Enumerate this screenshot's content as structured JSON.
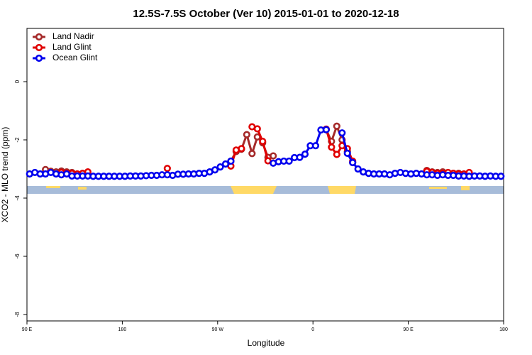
{
  "chart_data": {
    "type": "line",
    "title": "12.5S-7.5S October (Ver 10)   2015-01-01 to 2020-12-18",
    "xlabel": "Longitude",
    "ylabel": "XCO2 - MLO trend (ppm)",
    "xlim": [
      90,
      540
    ],
    "ylim": [
      -8.22,
      1.83
    ],
    "xticks": [
      {
        "value": 90,
        "label": "90 E"
      },
      180,
      {
        "value": 270,
        "label": "90 W"
      },
      {
        "value": 360,
        "label": "0"
      },
      {
        "value": 450,
        "label": "90 E"
      },
      {
        "value": 540,
        "label": "180"
      }
    ],
    "yticks": [
      0,
      -2,
      -4,
      -6,
      -8
    ],
    "legend": "top-left",
    "x": [
      92.5,
      97.5,
      102.5,
      107.5,
      112.5,
      117.5,
      122.5,
      127.5,
      132.5,
      137.5,
      142.5,
      147.5,
      152.5,
      157.5,
      162.5,
      167.5,
      172.5,
      177.5,
      182.5,
      187.5,
      192.5,
      197.5,
      202.5,
      207.5,
      212.5,
      217.5,
      222.5,
      227.5,
      232.5,
      237.5,
      242.5,
      247.5,
      252.5,
      257.5,
      262.5,
      267.5,
      272.5,
      277.5,
      282.5,
      287.5,
      292.5,
      297.5,
      302.5,
      307.5,
      312.5,
      317.5,
      322.5,
      327.5,
      332.5,
      337.5,
      342.5,
      347.5,
      352.5,
      357.5,
      362.5,
      367.5,
      372.5,
      377.5,
      382.5,
      387.5,
      392.5,
      397.5,
      402.5,
      407.5,
      412.5,
      417.5,
      422.5,
      427.5,
      432.5,
      437.5,
      442.5,
      447.5,
      452.5,
      457.5,
      462.5,
      467.5,
      472.5,
      477.5,
      482.5,
      487.5,
      492.5,
      497.5,
      502.5,
      507.5,
      512.5,
      517.5,
      522.5,
      527.5,
      532.5,
      537.5
    ],
    "series": [
      {
        "name": "Land Nadir",
        "color": "#a52a2a",
        "values": [
          null,
          null,
          null,
          -3.02,
          -3.08,
          -3.1,
          -3.07,
          -3.1,
          -3.12,
          null,
          null,
          null,
          null,
          null,
          null,
          null,
          null,
          null,
          null,
          null,
          null,
          null,
          null,
          null,
          null,
          null,
          null,
          null,
          null,
          null,
          null,
          null,
          null,
          null,
          null,
          null,
          null,
          null,
          -2.73,
          -2.4,
          -2.32,
          -1.82,
          -2.47,
          -1.9,
          -2.1,
          -2.6,
          -2.55,
          null,
          null,
          null,
          null,
          null,
          null,
          null,
          null,
          null,
          -1.65,
          -2.05,
          -1.53,
          -2.0,
          -2.4,
          -2.78,
          null,
          null,
          null,
          null,
          null,
          null,
          null,
          null,
          null,
          null,
          null,
          null,
          null,
          -3.05,
          -3.1,
          -3.12,
          -3.1,
          -3.15,
          -3.15,
          -3.15,
          -3.18,
          null,
          null,
          null,
          null,
          null,
          null,
          null
        ]
      },
      {
        "name": "Land Glint",
        "color": "#e00000",
        "values": [
          null,
          null,
          null,
          null,
          null,
          null,
          -3.12,
          -3.14,
          -3.15,
          -3.17,
          -3.15,
          -3.1,
          null,
          null,
          null,
          null,
          null,
          null,
          null,
          null,
          null,
          null,
          null,
          null,
          null,
          null,
          -2.98,
          null,
          null,
          null,
          null,
          null,
          null,
          null,
          null,
          null,
          null,
          null,
          -2.9,
          -2.35,
          -2.3,
          null,
          -1.55,
          -1.62,
          -2.05,
          -2.72,
          null,
          null,
          null,
          null,
          null,
          null,
          null,
          null,
          null,
          null,
          -1.63,
          -2.25,
          -2.5,
          -2.2,
          -2.3,
          -2.73,
          null,
          null,
          null,
          null,
          null,
          null,
          null,
          null,
          null,
          null,
          null,
          null,
          null,
          -3.08,
          -3.12,
          -3.15,
          -3.15,
          -3.12,
          -3.15,
          -3.17,
          -3.17,
          -3.12,
          null,
          null,
          null,
          null,
          null,
          null
        ]
      },
      {
        "name": "Ocean Glint",
        "color": "#0000ee",
        "values": [
          -3.17,
          -3.12,
          -3.17,
          -3.17,
          -3.12,
          -3.17,
          -3.2,
          -3.17,
          -3.24,
          -3.24,
          -3.24,
          -3.24,
          -3.25,
          -3.25,
          -3.25,
          -3.25,
          -3.25,
          -3.25,
          -3.25,
          -3.24,
          -3.24,
          -3.24,
          -3.23,
          -3.22,
          -3.22,
          -3.2,
          -3.2,
          -3.22,
          -3.18,
          -3.18,
          -3.17,
          -3.17,
          -3.15,
          -3.15,
          -3.1,
          -3.03,
          -2.93,
          -2.83,
          -2.73,
          null,
          null,
          null,
          null,
          null,
          null,
          null,
          -2.8,
          -2.75,
          -2.73,
          -2.73,
          -2.61,
          -2.6,
          -2.49,
          -2.2,
          -2.2,
          -1.66,
          -1.65,
          null,
          null,
          -1.76,
          -2.46,
          -2.78,
          -3.0,
          -3.1,
          -3.15,
          -3.17,
          -3.17,
          -3.17,
          -3.2,
          -3.15,
          -3.12,
          -3.15,
          -3.17,
          -3.15,
          -3.17,
          -3.2,
          -3.2,
          -3.22,
          -3.2,
          -3.22,
          -3.22,
          -3.24,
          -3.24,
          -3.25,
          -3.24,
          -3.24,
          -3.25,
          -3.24,
          -3.25,
          -3.25
        ]
      }
    ]
  }
}
